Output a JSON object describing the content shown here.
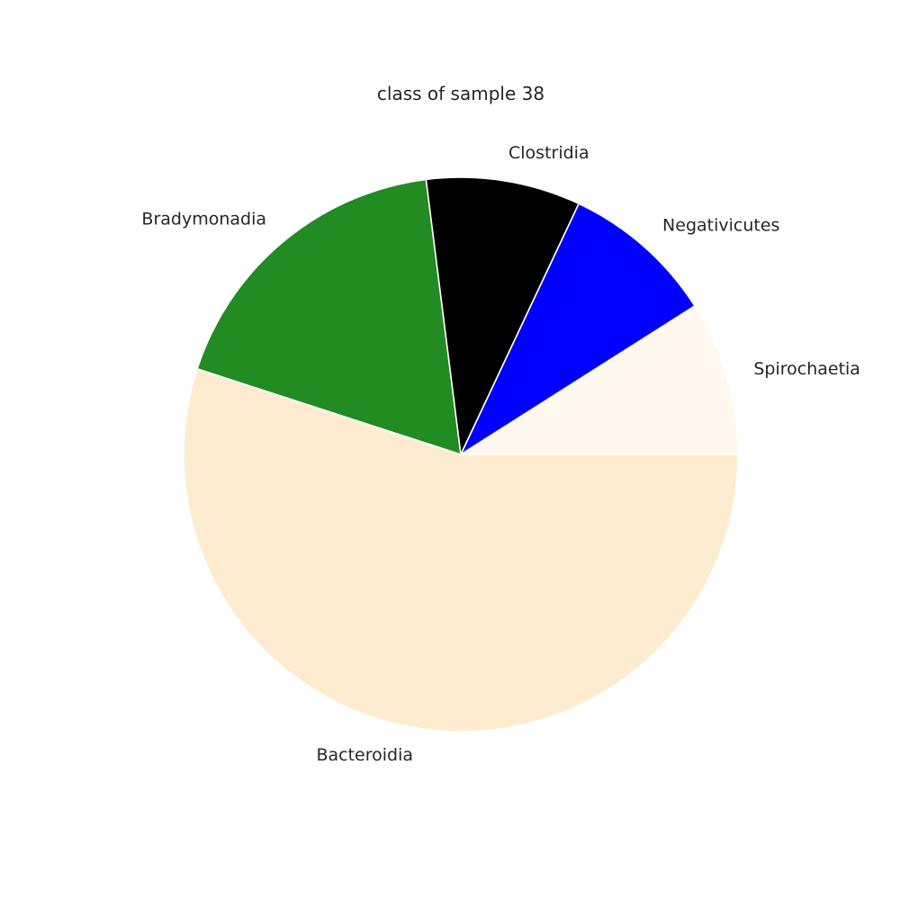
{
  "chart_data": {
    "type": "pie",
    "title": "class of sample 38",
    "start_angle_deg": 0,
    "direction": "clockwise",
    "slices": [
      {
        "label": "Bacteroidia",
        "value": 55,
        "color": "#ffebd0"
      },
      {
        "label": "Bradymonadia",
        "value": 18,
        "color": "#228b22"
      },
      {
        "label": "Clostridia",
        "value": 9,
        "color": "#000000"
      },
      {
        "label": "Negativicutes",
        "value": 9,
        "color": "#0000ff"
      },
      {
        "label": "Spirochaetia",
        "value": 9,
        "color": "#fff8ee"
      }
    ]
  }
}
